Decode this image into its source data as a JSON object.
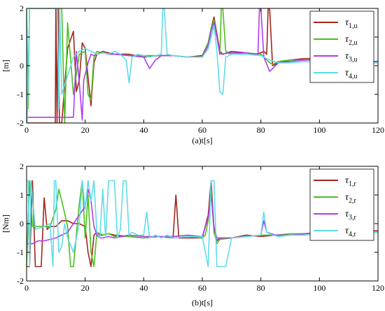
{
  "chart_data": [
    {
      "type": "line",
      "xlabel": "(a)t[s]",
      "ylabel": "[m]",
      "xlim": [
        0,
        120
      ],
      "ylim": [
        -2,
        2
      ],
      "xticks": [
        "0",
        "20",
        "40",
        "60",
        "80",
        "100",
        "120"
      ],
      "yticks": [
        "2",
        "1",
        "0",
        "-1",
        "-2"
      ],
      "grid": false,
      "legend_position": "top-right",
      "series": [
        {
          "name": "τ1,u",
          "base": "τ",
          "sub": "1,u",
          "color": "#a0261e",
          "x": [
            0,
            9.8,
            10,
            10.4,
            10.8,
            11.2,
            12,
            14,
            16,
            17,
            18,
            19,
            20,
            21,
            22,
            23,
            24,
            26,
            28,
            30,
            35,
            40,
            45,
            50,
            55,
            60,
            62,
            63,
            64,
            65,
            66,
            67,
            70,
            75,
            78,
            80,
            81,
            82,
            82.5,
            83,
            84,
            86,
            90,
            95,
            100,
            105,
            110,
            115,
            120
          ],
          "y": [
            -2,
            -2,
            2,
            -2,
            2,
            -2,
            -2,
            0.6,
            1.2,
            -0.9,
            -0.5,
            0.8,
            0.6,
            -0.4,
            -1.4,
            0.1,
            0.4,
            0.5,
            0.45,
            0.4,
            0.4,
            0.3,
            0.35,
            0.35,
            0.3,
            0.35,
            0.8,
            1.3,
            1.7,
            1.1,
            0.5,
            0.4,
            0.5,
            0.45,
            0.4,
            0.45,
            0.5,
            0.4,
            2,
            2,
            0,
            0.1,
            0.2,
            0.25,
            0.25,
            0.2,
            0.2,
            0.15,
            0.15
          ]
        },
        {
          "name": "τ2,u",
          "base": "τ",
          "sub": "2,u",
          "color": "#4cbe1c",
          "x": [
            0,
            0.5,
            1,
            12,
            13,
            14,
            16,
            18,
            20,
            21,
            22,
            23,
            24,
            26,
            28,
            30,
            35,
            40,
            45,
            50,
            55,
            60,
            62,
            63,
            64,
            65,
            66,
            66.5,
            67,
            68,
            70,
            75,
            80,
            83,
            84,
            86,
            90,
            95,
            100,
            105,
            110,
            115,
            120
          ],
          "y": [
            2,
            -1.5,
            2,
            2,
            -2,
            1.5,
            -1,
            0.4,
            0.5,
            -1,
            -1.2,
            0.3,
            0.5,
            0.45,
            0.4,
            0.4,
            0.35,
            0.35,
            0.35,
            0.35,
            0.3,
            0.3,
            0.8,
            1.3,
            1.6,
            1,
            0.4,
            2,
            2,
            0.5,
            0.4,
            0.45,
            0.4,
            0.1,
            0.05,
            0.15,
            0.2,
            0.2,
            0.2,
            0.15,
            0.15,
            0.15,
            0.15
          ]
        },
        {
          "name": "τ3,u",
          "base": "τ",
          "sub": "3,u",
          "color": "#b13cf0",
          "x": [
            0,
            16,
            17,
            18,
            19,
            19.5,
            20,
            21,
            22,
            23,
            24,
            26,
            28,
            30,
            35,
            40,
            42,
            44,
            46,
            50,
            55,
            60,
            62,
            63,
            64,
            65,
            66,
            70,
            75,
            78,
            79,
            79.5,
            80,
            81,
            83,
            84,
            86,
            90,
            95,
            100,
            105,
            110,
            115,
            120
          ],
          "y": [
            -1.8,
            -1.8,
            0.5,
            -0.6,
            -1.9,
            -0.5,
            -0.3,
            0.1,
            0.4,
            0.35,
            0.4,
            0.45,
            0.4,
            0.4,
            0.35,
            0.3,
            -0.1,
            0.2,
            0.35,
            0.35,
            0.3,
            0.3,
            0.7,
            1.2,
            1.5,
            1,
            0.4,
            0.45,
            0.45,
            0.4,
            0.4,
            2,
            2,
            0.3,
            -0.2,
            -0.1,
            0.1,
            0.15,
            0.2,
            0.2,
            0.15,
            0.15,
            0.15,
            0.15
          ]
        },
        {
          "name": "τ4,u",
          "base": "τ",
          "sub": "4,u",
          "color": "#5fdcea",
          "x": [
            0,
            0.2,
            1,
            10.5,
            11,
            11.3,
            12,
            16,
            18,
            20,
            22,
            24,
            26,
            28,
            30,
            32,
            34,
            35,
            36,
            38,
            40,
            42,
            44,
            46,
            46.5,
            47,
            48,
            50,
            55,
            60,
            62,
            63,
            64,
            65,
            66,
            67,
            68,
            70,
            75,
            80,
            83,
            86,
            90,
            95,
            100,
            105,
            110,
            115,
            120
          ],
          "y": [
            2,
            -2,
            2,
            2,
            -1.5,
            2,
            -1,
            0.3,
            0.5,
            0.6,
            0.5,
            0.4,
            0.45,
            0.4,
            0.5,
            0.4,
            0.2,
            -0.6,
            0.3,
            0.4,
            0.35,
            0.3,
            0.35,
            0.4,
            2,
            2,
            0.4,
            0.35,
            0.3,
            0.3,
            0.6,
            1,
            1.4,
            0.5,
            -0.9,
            -1,
            0.3,
            0.4,
            0.4,
            0.35,
            0.2,
            0.1,
            0.1,
            0.15,
            0.1,
            0.1,
            0.1,
            0.1,
            0.1
          ]
        }
      ]
    },
    {
      "type": "line",
      "xlabel": "(b)t[s]",
      "ylabel": "[Nm]",
      "xlim": [
        0,
        120
      ],
      "ylim": [
        -2,
        2
      ],
      "xticks": [
        "0",
        "20",
        "40",
        "60",
        "80",
        "100",
        "120"
      ],
      "yticks": [
        "2",
        "1",
        "0",
        "-1",
        "-2"
      ],
      "grid": false,
      "legend_position": "top-right",
      "series": [
        {
          "name": "τ1,r",
          "base": "τ",
          "sub": "1,r",
          "color": "#a0261e",
          "x": [
            0,
            1,
            2,
            3,
            4,
            5,
            6,
            7,
            8,
            10,
            12,
            14,
            16,
            18,
            20,
            21,
            22,
            23,
            24,
            25,
            26,
            28,
            30,
            35,
            40,
            45,
            50,
            51,
            52,
            55,
            60,
            62,
            63,
            64,
            65,
            66,
            70,
            75,
            80,
            85,
            90,
            95,
            100,
            105,
            110,
            115,
            120
          ],
          "y": [
            -1.5,
            -1.5,
            1.5,
            -1.5,
            -1.5,
            -1.5,
            0.9,
            -0.2,
            -0.1,
            -0.1,
            0.1,
            0.1,
            0,
            0,
            -0.1,
            -1,
            -1.5,
            -0.4,
            -0.3,
            -0.4,
            -0.4,
            -0.35,
            -0.4,
            -0.45,
            -0.5,
            -0.45,
            -0.5,
            1,
            -0.5,
            -0.5,
            -0.5,
            0.3,
            1.5,
            -0.2,
            -0.6,
            -0.5,
            -0.5,
            -0.4,
            -0.45,
            -0.4,
            -0.4,
            -0.35,
            -0.3,
            -0.3,
            -0.3,
            -0.25,
            -0.25
          ]
        },
        {
          "name": "τ2,r",
          "base": "τ",
          "sub": "2,r",
          "color": "#4cbe1c",
          "x": [
            0,
            1,
            2,
            4,
            6,
            8,
            10,
            11,
            12,
            14,
            15,
            16,
            18,
            19,
            20,
            21,
            22,
            23,
            24,
            26,
            28,
            30,
            35,
            40,
            45,
            50,
            55,
            60,
            61,
            62,
            63,
            64,
            65,
            66,
            70,
            75,
            80,
            85,
            90,
            95,
            100,
            105,
            110,
            115,
            120
          ],
          "y": [
            -1.5,
            1.5,
            -0.1,
            -0.1,
            -0.1,
            -0.1,
            0.5,
            1.2,
            0.8,
            -0.1,
            -1.5,
            -1.5,
            0.7,
            1.5,
            -0.5,
            1,
            -1,
            -1.5,
            -0.3,
            -0.4,
            -0.35,
            -0.45,
            -0.45,
            -0.5,
            -0.45,
            -0.5,
            -0.45,
            -0.5,
            -0.4,
            0.1,
            1.2,
            -0.3,
            -0.7,
            -0.55,
            -0.5,
            -0.45,
            -0.4,
            -0.4,
            -0.35,
            -0.35,
            -0.3,
            -0.3,
            -0.3,
            -0.3,
            -0.3
          ]
        },
        {
          "name": "τ3,r",
          "base": "τ",
          "sub": "3,r",
          "color": "#b13cf0",
          "x": [
            0,
            2,
            4,
            6,
            8,
            10,
            12,
            14,
            16,
            18,
            20,
            21,
            22,
            23,
            24,
            25,
            26,
            28,
            30,
            35,
            40,
            45,
            50,
            55,
            60,
            62,
            63,
            64,
            65,
            66,
            70,
            75,
            80,
            81,
            82,
            85,
            90,
            95,
            100,
            105,
            110,
            115,
            120
          ],
          "y": [
            -0.7,
            -0.7,
            -0.6,
            -0.6,
            -0.55,
            -0.5,
            -0.4,
            -0.3,
            0,
            0.3,
            0.6,
            1.2,
            0.8,
            -0.1,
            -0.4,
            -0.5,
            -0.5,
            -0.45,
            -0.5,
            -0.4,
            -0.45,
            -0.45,
            -0.45,
            -0.4,
            -0.45,
            0.2,
            1,
            -0.1,
            -0.5,
            -0.5,
            -0.5,
            -0.45,
            -0.4,
            0.1,
            -0.3,
            -0.4,
            -0.4,
            -0.35,
            -0.3,
            -0.3,
            -0.3,
            -0.3,
            -0.3
          ]
        },
        {
          "name": "τ4,r",
          "base": "τ",
          "sub": "4,r",
          "color": "#5fdcea",
          "x": [
            0,
            0.5,
            1,
            1.5,
            3,
            6,
            8,
            9,
            9.5,
            10,
            11,
            12,
            13,
            14,
            16,
            18,
            19,
            20,
            21,
            22,
            23,
            24,
            25,
            26,
            27,
            28,
            30,
            31,
            32,
            33,
            34,
            35,
            36,
            38,
            40,
            41,
            42,
            44,
            46,
            48,
            50,
            55,
            60,
            62,
            63,
            64,
            65,
            66,
            67,
            68,
            70,
            75,
            80,
            81,
            82,
            84,
            86,
            90,
            95,
            100,
            105,
            110,
            115,
            120
          ],
          "y": [
            1.5,
            1.5,
            -1.5,
            1.5,
            -0.2,
            -0.1,
            0,
            -1.5,
            1.5,
            1.5,
            -1,
            -0.8,
            0,
            -0.5,
            -1,
            0,
            1.5,
            0.5,
            1.5,
            0.8,
            1.5,
            -0.3,
            -0.5,
            1.2,
            -0.5,
            1.5,
            1.5,
            -0.5,
            -0.2,
            1.5,
            1.5,
            -0.4,
            -0.3,
            -0.4,
            -0.4,
            0.4,
            -0.5,
            -0.4,
            -0.5,
            -0.4,
            -0.5,
            -0.45,
            -0.45,
            -1.5,
            1.5,
            1.5,
            -1.5,
            -1.5,
            -1.5,
            -1.5,
            -0.5,
            -0.45,
            -0.4,
            0.4,
            -0.3,
            -0.4,
            -0.45,
            -0.4,
            -0.4,
            -0.35,
            -0.3,
            -0.35,
            -0.3,
            -0.3
          ]
        }
      ]
    }
  ]
}
